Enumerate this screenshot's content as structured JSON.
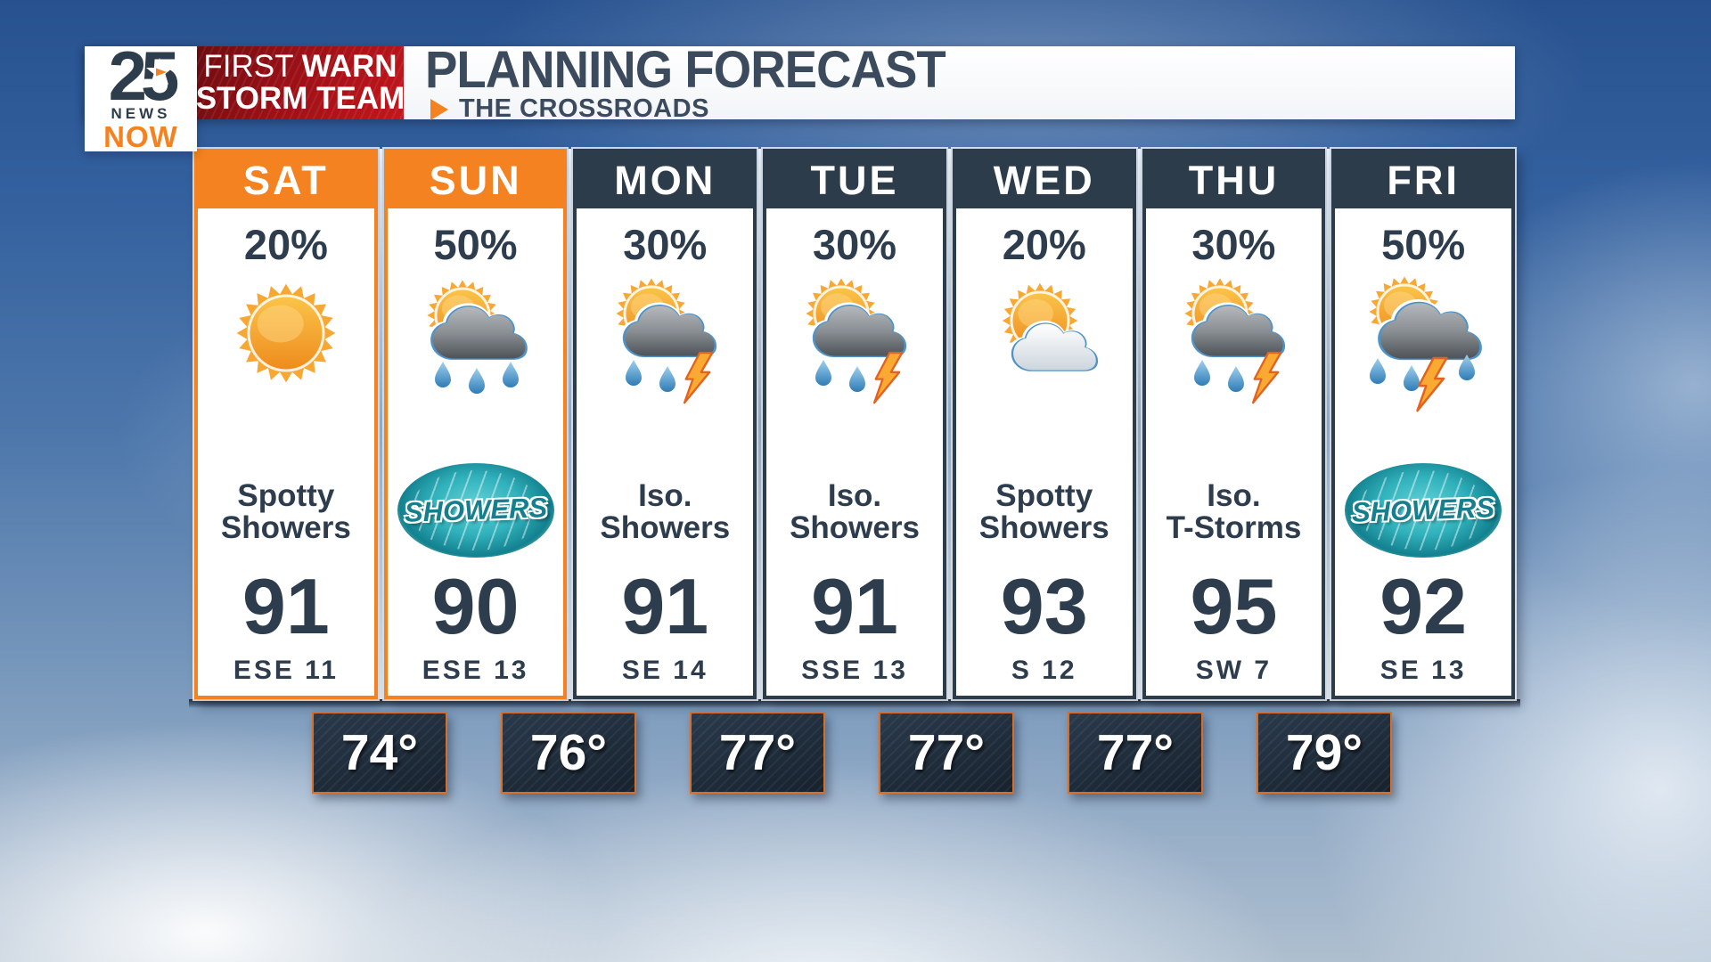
{
  "header": {
    "logo": {
      "number": "25",
      "news_label": "NEWS",
      "now_label": "NOW"
    },
    "storm_team_badge": {
      "first": "FIRST ",
      "warn": "WARN",
      "storm_team": "STORM TEAM"
    },
    "title": "PLANNING FORECAST",
    "location": "THE CROSSROADS"
  },
  "forecast": {
    "days": [
      {
        "day": "SAT",
        "accent": "orange",
        "pop": "20%",
        "icon": "sun",
        "condition_lines": [
          "Spotty",
          "Showers"
        ],
        "badge": null,
        "high": "91",
        "wind": "ESE 11"
      },
      {
        "day": "SUN",
        "accent": "orange",
        "pop": "50%",
        "icon": "sun-cloud-rain",
        "condition_lines": [],
        "badge": "SHOWERS",
        "high": "90",
        "wind": "ESE 13"
      },
      {
        "day": "MON",
        "accent": "navy",
        "pop": "30%",
        "icon": "sun-cloud-rain-lightning",
        "condition_lines": [
          "Iso.",
          "Showers"
        ],
        "badge": null,
        "high": "91",
        "wind": "SE 14"
      },
      {
        "day": "TUE",
        "accent": "navy",
        "pop": "30%",
        "icon": "sun-cloud-rain-lightning",
        "condition_lines": [
          "Iso.",
          "Showers"
        ],
        "badge": null,
        "high": "91",
        "wind": "SSE 13"
      },
      {
        "day": "WED",
        "accent": "navy",
        "pop": "20%",
        "icon": "sun-cloud",
        "condition_lines": [
          "Spotty",
          "Showers"
        ],
        "badge": null,
        "high": "93",
        "wind": "S 12"
      },
      {
        "day": "THU",
        "accent": "navy",
        "pop": "30%",
        "icon": "sun-cloud-rain-lightning",
        "condition_lines": [
          "Iso.",
          "T-Storms"
        ],
        "badge": null,
        "high": "95",
        "wind": "SW 7"
      },
      {
        "day": "FRI",
        "accent": "navy",
        "pop": "50%",
        "icon": "sun-storm-rain",
        "condition_lines": [],
        "badge": "SHOWERS",
        "high": "92",
        "wind": "SE 13"
      }
    ],
    "overnight_lows": [
      "74°",
      "76°",
      "77°",
      "77°",
      "77°",
      "79°"
    ]
  },
  "colors": {
    "accent_orange": "#f58220",
    "header_navy": "#2d3c4b",
    "text_navy": "#2e3d4d",
    "badge_teal": "#157f8d",
    "red_badge_dark": "#6e0c10",
    "red_badge_bright": "#c4161c",
    "title_slate": "#3b4a5d",
    "low_box_border": "#d96f26"
  },
  "chart_data": {
    "type": "table",
    "title": "PLANNING FORECAST",
    "subtitle": "THE CROSSROADS",
    "columns": [
      "SAT",
      "SUN",
      "MON",
      "TUE",
      "WED",
      "THU",
      "FRI"
    ],
    "rows": {
      "precip_chance_pct": [
        20,
        50,
        30,
        30,
        20,
        30,
        50
      ],
      "condition": [
        "Spotty Showers",
        "Showers",
        "Iso. Showers",
        "Iso. Showers",
        "Spotty Showers",
        "Iso. T-Storms",
        "Showers"
      ],
      "high_f": [
        91,
        90,
        91,
        91,
        93,
        95,
        92
      ],
      "wind": [
        "ESE 11",
        "ESE 13",
        "SE 14",
        "SSE 13",
        "S 12",
        "SW 7",
        "SE 13"
      ],
      "overnight_low_f": [
        74,
        76,
        77,
        77,
        77,
        79
      ]
    },
    "notes": "Overnight lows shown between consecutive day columns"
  }
}
